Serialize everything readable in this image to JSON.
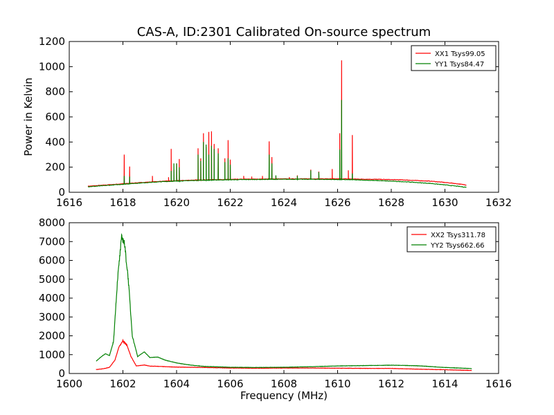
{
  "figure_title": "CAS-A, ID:2301 Calibrated On-source spectrum",
  "chart_data": [
    {
      "type": "line",
      "title": "CAS-A, ID:2301 Calibrated On-source spectrum",
      "xlabel": "",
      "ylabel": "Power in Kelvin",
      "xlim": [
        1616,
        1632
      ],
      "ylim": [
        0,
        1200
      ],
      "xticks": [
        1616,
        1618,
        1620,
        1622,
        1624,
        1626,
        1628,
        1630,
        1632
      ],
      "yticks": [
        0,
        200,
        400,
        600,
        800,
        1000,
        1200
      ],
      "grid": false,
      "legend_position": "top-right",
      "series": [
        {
          "name": "XX1 Tsys99.05",
          "color": "#ff0000",
          "baseline": [
            [
              1616.7,
              48
            ],
            [
              1617.5,
              60
            ],
            [
              1618.5,
              75
            ],
            [
              1619.5,
              88
            ],
            [
              1620.5,
              96
            ],
            [
              1621.5,
              101
            ],
            [
              1622.5,
              104
            ],
            [
              1623.5,
              106
            ],
            [
              1624.5,
              107
            ],
            [
              1625.5,
              107
            ],
            [
              1626.5,
              106
            ],
            [
              1627.5,
              103
            ],
            [
              1628.5,
              98
            ],
            [
              1629.5,
              88
            ],
            [
              1630.3,
              72
            ],
            [
              1630.8,
              58
            ]
          ],
          "spikes": [
            [
              1618.05,
              300
            ],
            [
              1618.25,
              205
            ],
            [
              1619.1,
              130
            ],
            [
              1619.7,
              120
            ],
            [
              1619.8,
              345
            ],
            [
              1619.9,
              180
            ],
            [
              1620.0,
              230
            ],
            [
              1620.1,
              265
            ],
            [
              1620.8,
              350
            ],
            [
              1620.9,
              270
            ],
            [
              1621.0,
              470
            ],
            [
              1621.1,
              360
            ],
            [
              1621.2,
              480
            ],
            [
              1621.3,
              485
            ],
            [
              1621.4,
              385
            ],
            [
              1621.55,
              350
            ],
            [
              1621.8,
              270
            ],
            [
              1621.92,
              415
            ],
            [
              1622.0,
              260
            ],
            [
              1622.5,
              130
            ],
            [
              1622.8,
              125
            ],
            [
              1623.2,
              130
            ],
            [
              1623.45,
              405
            ],
            [
              1623.55,
              280
            ],
            [
              1623.7,
              130
            ],
            [
              1624.2,
              120
            ],
            [
              1624.5,
              135
            ],
            [
              1625.0,
              180
            ],
            [
              1625.3,
              165
            ],
            [
              1625.8,
              185
            ],
            [
              1626.08,
              470
            ],
            [
              1626.15,
              1050
            ],
            [
              1626.4,
              175
            ],
            [
              1626.55,
              455
            ]
          ]
        },
        {
          "name": "YY1 Tsys84.47",
          "color": "#008000",
          "baseline": [
            [
              1616.7,
              44
            ],
            [
              1617.5,
              56
            ],
            [
              1618.5,
              72
            ],
            [
              1619.5,
              85
            ],
            [
              1620.5,
              93
            ],
            [
              1621.5,
              98
            ],
            [
              1622.5,
              101
            ],
            [
              1623.5,
              103
            ],
            [
              1624.5,
              104
            ],
            [
              1625.5,
              103
            ],
            [
              1626.5,
              100
            ],
            [
              1627.5,
              93
            ],
            [
              1628.5,
              84
            ],
            [
              1629.5,
              70
            ],
            [
              1630.3,
              52
            ],
            [
              1630.8,
              40
            ]
          ],
          "spikes": [
            [
              1618.05,
              130
            ],
            [
              1618.25,
              125
            ],
            [
              1619.8,
              170
            ],
            [
              1619.9,
              230
            ],
            [
              1620.0,
              230
            ],
            [
              1620.1,
              200
            ],
            [
              1620.8,
              300
            ],
            [
              1620.9,
              250
            ],
            [
              1621.0,
              400
            ],
            [
              1621.1,
              380
            ],
            [
              1621.2,
              300
            ],
            [
              1621.3,
              370
            ],
            [
              1621.4,
              345
            ],
            [
              1621.55,
              310
            ],
            [
              1621.8,
              240
            ],
            [
              1621.92,
              270
            ],
            [
              1622.0,
              220
            ],
            [
              1623.45,
              300
            ],
            [
              1623.55,
              230
            ],
            [
              1623.7,
              135
            ],
            [
              1624.5,
              130
            ],
            [
              1625.0,
              175
            ],
            [
              1625.3,
              160
            ],
            [
              1626.08,
              340
            ],
            [
              1626.15,
              735
            ],
            [
              1626.4,
              100
            ],
            [
              1626.55,
              150
            ]
          ]
        }
      ]
    },
    {
      "type": "line",
      "title": "",
      "xlabel": "Frequency (MHz)",
      "ylabel": "",
      "xlim": [
        1600,
        1616
      ],
      "ylim": [
        0,
        8000
      ],
      "xticks": [
        1600,
        1602,
        1604,
        1606,
        1608,
        1610,
        1612,
        1614,
        1616
      ],
      "yticks": [
        0,
        1000,
        2000,
        3000,
        4000,
        5000,
        6000,
        7000,
        8000
      ],
      "grid": false,
      "legend_position": "top-right",
      "series": [
        {
          "name": "XX2 Tsys311.78",
          "color": "#ff0000",
          "points": [
            [
              1601.0,
              210
            ],
            [
              1601.3,
              260
            ],
            [
              1601.5,
              330
            ],
            [
              1601.7,
              700
            ],
            [
              1601.85,
              1400
            ],
            [
              1602.0,
              1750
            ],
            [
              1602.15,
              1500
            ],
            [
              1602.3,
              900
            ],
            [
              1602.5,
              400
            ],
            [
              1602.8,
              450
            ],
            [
              1603.0,
              390
            ],
            [
              1603.3,
              380
            ],
            [
              1603.6,
              360
            ],
            [
              1604.0,
              340
            ],
            [
              1605.0,
              320
            ],
            [
              1606.0,
              290
            ],
            [
              1607.0,
              280
            ],
            [
              1608.0,
              290
            ],
            [
              1609.0,
              290
            ],
            [
              1610.0,
              280
            ],
            [
              1611.0,
              270
            ],
            [
              1612.0,
              270
            ],
            [
              1613.0,
              230
            ],
            [
              1614.0,
              200
            ],
            [
              1615.0,
              160
            ]
          ]
        },
        {
          "name": "YY2 Tsys662.66",
          "color": "#008000",
          "points": [
            [
              1601.0,
              650
            ],
            [
              1601.2,
              900
            ],
            [
              1601.35,
              1050
            ],
            [
              1601.5,
              950
            ],
            [
              1601.65,
              1700
            ],
            [
              1601.8,
              5000
            ],
            [
              1601.95,
              7200
            ],
            [
              1602.05,
              7000
            ],
            [
              1602.2,
              5000
            ],
            [
              1602.35,
              2000
            ],
            [
              1602.55,
              900
            ],
            [
              1602.8,
              1150
            ],
            [
              1603.0,
              850
            ],
            [
              1603.3,
              870
            ],
            [
              1603.6,
              700
            ],
            [
              1604.0,
              560
            ],
            [
              1604.5,
              450
            ],
            [
              1605.0,
              380
            ],
            [
              1606.0,
              330
            ],
            [
              1607.0,
              320
            ],
            [
              1608.0,
              330
            ],
            [
              1609.0,
              360
            ],
            [
              1610.0,
              400
            ],
            [
              1611.0,
              420
            ],
            [
              1612.0,
              440
            ],
            [
              1613.0,
              410
            ],
            [
              1614.0,
              320
            ],
            [
              1615.0,
              260
            ]
          ]
        }
      ]
    }
  ]
}
